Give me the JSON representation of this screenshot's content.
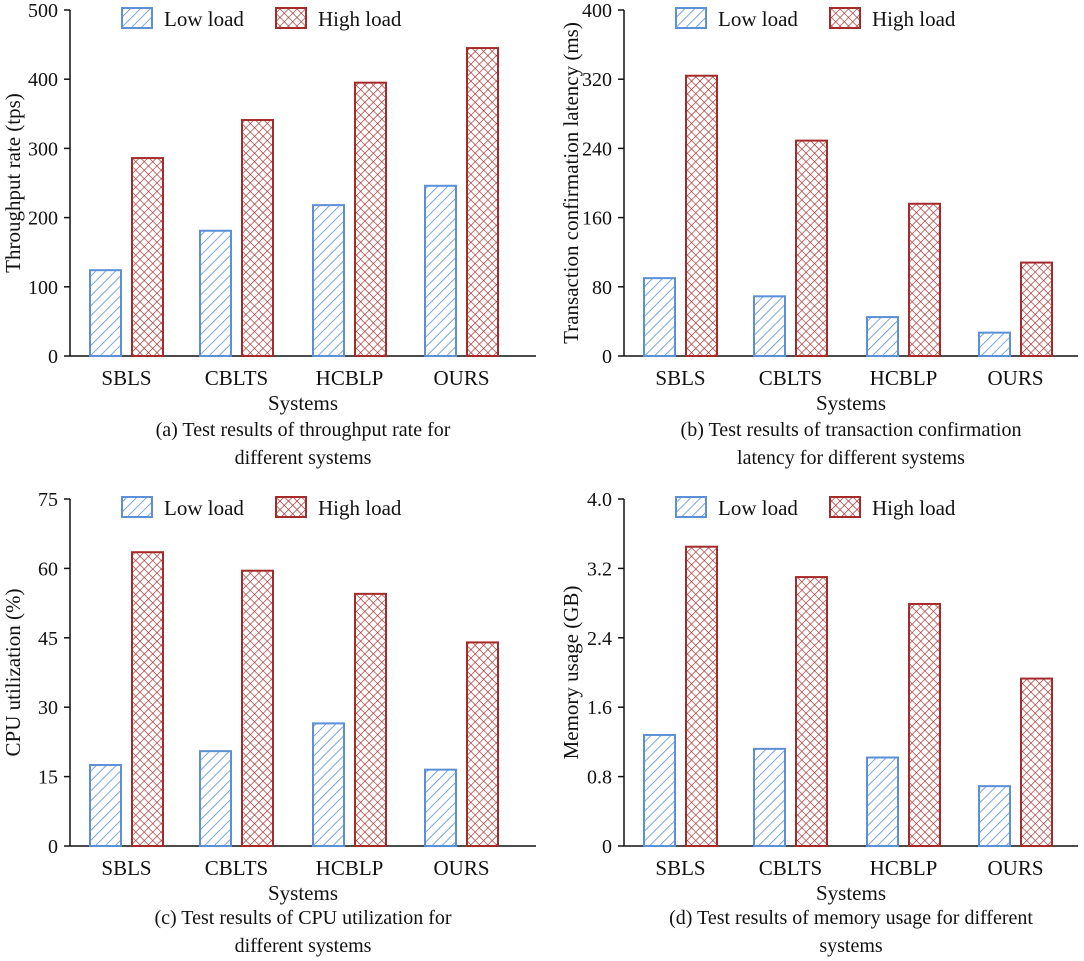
{
  "colors": {
    "low_load": "#5b8fd6",
    "high_load": "#a52a2a",
    "axis": "#111111"
  },
  "chart_data": [
    {
      "type": "bar",
      "id": "a",
      "categories": [
        "SBLS",
        "CBLTS",
        "HCBLP",
        "OURS"
      ],
      "series": [
        {
          "name": "Low load",
          "values": [
            124,
            181,
            218,
            246
          ]
        },
        {
          "name": "High load",
          "values": [
            286,
            341,
            395,
            445
          ]
        }
      ],
      "xlabel": "Systems",
      "ylabel": "Throughput rate (tps)",
      "ylim": [
        0,
        500
      ],
      "yticks": [
        "0",
        "100",
        "200",
        "300",
        "400",
        "500"
      ],
      "caption": [
        "(a) Test results of throughput rate for",
        "different systems"
      ]
    },
    {
      "type": "bar",
      "id": "b",
      "categories": [
        "SBLS",
        "CBLTS",
        "HCBLP",
        "OURS"
      ],
      "series": [
        {
          "name": "Low load",
          "values": [
            90,
            69,
            45,
            27
          ]
        },
        {
          "name": "High load",
          "values": [
            324,
            249,
            176,
            108
          ]
        }
      ],
      "xlabel": "Systems",
      "ylabel": "Transaction confirmation latency (ms)",
      "ylim": [
        0,
        400
      ],
      "yticks": [
        "0",
        "80",
        "160",
        "240",
        "320",
        "400"
      ],
      "caption": [
        "(b) Test results of transaction confirmation",
        "latency for different systems"
      ]
    },
    {
      "type": "bar",
      "id": "c",
      "categories": [
        "SBLS",
        "CBLTS",
        "HCBLP",
        "OURS"
      ],
      "series": [
        {
          "name": "Low load",
          "values": [
            17.5,
            20.5,
            26.5,
            16.5
          ]
        },
        {
          "name": "High load",
          "values": [
            63.5,
            59.5,
            54.5,
            44
          ]
        }
      ],
      "xlabel": "Systems",
      "ylabel": "CPU utilization (%)",
      "ylim": [
        0,
        75
      ],
      "yticks": [
        "0",
        "15",
        "30",
        "45",
        "60",
        "75"
      ],
      "caption": [
        "(c) Test results of CPU utilization for",
        "different systems"
      ]
    },
    {
      "type": "bar",
      "id": "d",
      "categories": [
        "SBLS",
        "CBLTS",
        "HCBLP",
        "OURS"
      ],
      "series": [
        {
          "name": "Low load",
          "values": [
            1.28,
            1.12,
            1.02,
            0.69
          ]
        },
        {
          "name": "High load",
          "values": [
            3.45,
            3.1,
            2.79,
            1.93
          ]
        }
      ],
      "xlabel": "Systems",
      "ylabel": "Memory usage (GB)",
      "ylim": [
        0,
        4.0
      ],
      "yticks": [
        "0",
        "0.8",
        "1.6",
        "2.4",
        "3.2",
        "4.0"
      ],
      "caption": [
        "(d) Test results of memory usage for different",
        "systems"
      ]
    }
  ]
}
